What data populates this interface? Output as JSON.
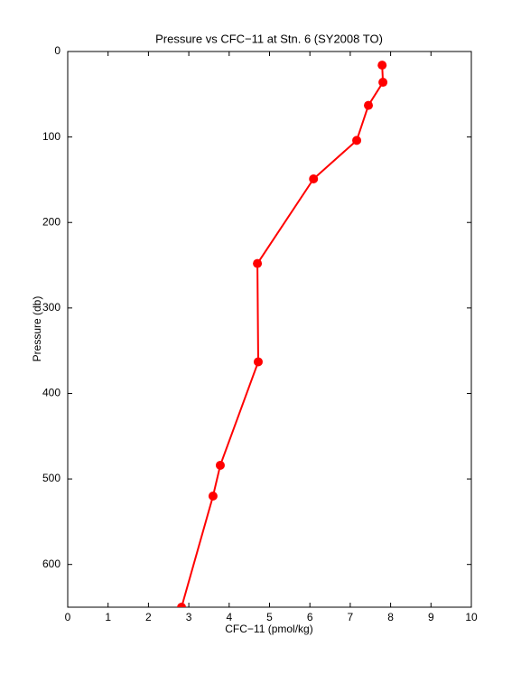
{
  "chart_data": {
    "type": "line",
    "title": "Pressure vs CFC−11 at Stn. 6 (SY2008 TO)",
    "x_label": "CFC−11 (pmol/kg)",
    "y_label": "Pressure (db)",
    "series": [
      {
        "color": "#ff0000",
        "x": [
          7.79,
          7.81,
          7.45,
          7.16,
          6.09,
          4.7,
          4.72,
          3.78,
          3.6,
          2.82
        ],
        "values": [
          16,
          36,
          63,
          104,
          149,
          248,
          363,
          484,
          520,
          650
        ]
      }
    ],
    "xlim": [
      0,
      10
    ],
    "xticks": [
      0,
      1,
      2,
      3,
      4,
      5,
      6,
      7,
      8,
      9,
      10
    ],
    "ylim": [
      0,
      650
    ],
    "yticks": [
      0,
      100,
      200,
      300,
      400,
      500,
      600
    ],
    "y_reversed": true,
    "grid": false
  }
}
